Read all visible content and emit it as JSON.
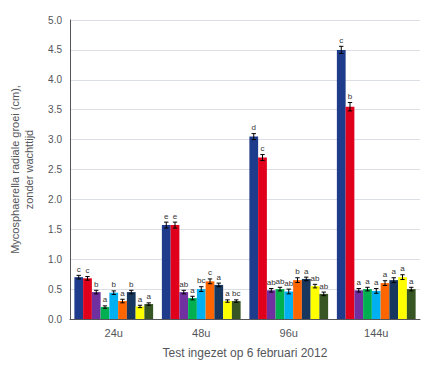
{
  "chart_data": {
    "type": "bar",
    "categories": [
      "24u",
      "48u",
      "96u",
      "144u"
    ],
    "series": [
      {
        "color": "#1f3b8c",
        "values": [
          0.7,
          1.57,
          3.05,
          4.5
        ],
        "errors": [
          0.03,
          0.05,
          0.05,
          0.06
        ],
        "labels": [
          "c",
          "e",
          "d",
          "c"
        ]
      },
      {
        "color": "#e0001b",
        "values": [
          0.68,
          1.57,
          2.7,
          3.55
        ],
        "errors": [
          0.03,
          0.05,
          0.05,
          0.07
        ],
        "labels": [
          "c",
          "e",
          "c",
          "b"
        ]
      },
      {
        "color": "#7030a0",
        "values": [
          0.45,
          0.45,
          0.48,
          0.48
        ],
        "errors": [
          0.03,
          0.03,
          0.03,
          0.03
        ],
        "labels": [
          "b",
          "ab",
          "ab",
          "a"
        ]
      },
      {
        "color": "#00b050",
        "values": [
          0.2,
          0.35,
          0.5,
          0.5
        ],
        "errors": [
          0.02,
          0.03,
          0.03,
          0.03
        ],
        "labels": [
          "a",
          "a",
          "ab",
          "a"
        ]
      },
      {
        "color": "#00b0f0",
        "values": [
          0.44,
          0.5,
          0.46,
          0.47
        ],
        "errors": [
          0.03,
          0.04,
          0.04,
          0.04
        ],
        "labels": [
          "b",
          "bc",
          "ab",
          "a"
        ]
      },
      {
        "color": "#ff6600",
        "values": [
          0.3,
          0.63,
          0.65,
          0.6
        ],
        "errors": [
          0.03,
          0.04,
          0.04,
          0.04
        ],
        "labels": [
          "a",
          "c",
          "b",
          "a"
        ]
      },
      {
        "color": "#17375e",
        "values": [
          0.45,
          0.57,
          0.67,
          0.65
        ],
        "errors": [
          0.03,
          0.03,
          0.03,
          0.04
        ],
        "labels": [
          "b",
          "a",
          "a",
          "a"
        ]
      },
      {
        "color": "#ffff00",
        "values": [
          0.21,
          0.3,
          0.55,
          0.7
        ],
        "errors": [
          0.02,
          0.02,
          0.03,
          0.04
        ],
        "labels": [
          "a",
          "a",
          "ab",
          "a"
        ]
      },
      {
        "color": "#375623",
        "values": [
          0.25,
          0.3,
          0.42,
          0.5
        ],
        "errors": [
          0.02,
          0.02,
          0.03,
          0.03
        ],
        "labels": [
          "a",
          "bc",
          "ab",
          "a"
        ]
      }
    ],
    "ylabel": "Mycosphaerella radiale groei (cm),\nzonder wachttijd",
    "xlabel": "Test ingezet op 6 februari 2012",
    "ylim": [
      0.0,
      5.0
    ],
    "yticks": [
      {
        "value": 0,
        "label": "0.0"
      },
      0.5,
      {
        "value": 1,
        "label": "1.0"
      },
      1.5,
      {
        "value": 2,
        "label": "2.0"
      },
      2.5,
      {
        "value": 3,
        "label": "3.0"
      },
      3.5,
      {
        "value": 4,
        "label": "4.0"
      },
      4.5,
      {
        "value": 5,
        "label": "5.0"
      }
    ],
    "grid": true
  }
}
